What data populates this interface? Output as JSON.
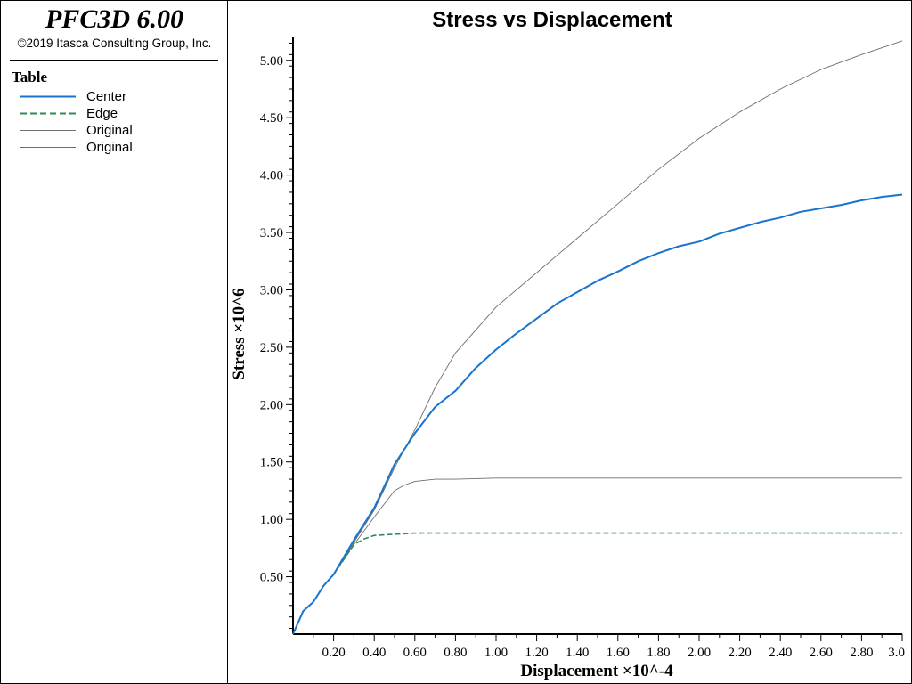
{
  "header": {
    "app_title": "PFC3D 6.00",
    "copyright": "©2019 Itasca Consulting Group, Inc."
  },
  "legend": {
    "title": "Table",
    "items": [
      {
        "label": "Center",
        "color": "#1874cd",
        "dash": "solid"
      },
      {
        "label": "Edge",
        "color": "#2e8b57",
        "dash": "dashed"
      },
      {
        "label": "Original",
        "color": "#6e6e6e",
        "dash": "solid"
      },
      {
        "label": "Original",
        "color": "#6e6e6e",
        "dash": "solid"
      }
    ]
  },
  "chart_data": {
    "type": "line",
    "title": "Stress vs Displacement",
    "xlabel": "Displacement ×10^-4",
    "ylabel": "Stress ×10^6",
    "xlim": [
      0,
      3.0
    ],
    "ylim": [
      0,
      5.2
    ],
    "x_ticks": [
      "0.20",
      "0.40",
      "0.60",
      "0.80",
      "1.00",
      "1.20",
      "1.40",
      "1.60",
      "1.80",
      "2.00",
      "2.20",
      "2.40",
      "2.60",
      "2.80",
      "3.0"
    ],
    "y_ticks": [
      "0.50",
      "1.00",
      "1.50",
      "2.00",
      "2.50",
      "3.00",
      "3.50",
      "4.00",
      "4.50",
      "5.00"
    ],
    "grid": false,
    "legend_position": "left-panel",
    "series": [
      {
        "name": "Center",
        "color": "#1874cd",
        "dash": "solid",
        "x": [
          0,
          0.05,
          0.1,
          0.15,
          0.2,
          0.3,
          0.4,
          0.5,
          0.6,
          0.7,
          0.8,
          0.9,
          1.0,
          1.1,
          1.2,
          1.3,
          1.4,
          1.5,
          1.6,
          1.7,
          1.8,
          1.9,
          2.0,
          2.1,
          2.2,
          2.3,
          2.4,
          2.5,
          2.6,
          2.7,
          2.8,
          2.9,
          3.0
        ],
        "y": [
          0,
          0.2,
          0.28,
          0.42,
          0.52,
          0.82,
          1.1,
          1.48,
          1.75,
          1.98,
          2.12,
          2.32,
          2.48,
          2.62,
          2.75,
          2.88,
          2.98,
          3.08,
          3.16,
          3.25,
          3.32,
          3.38,
          3.42,
          3.49,
          3.54,
          3.59,
          3.63,
          3.68,
          3.71,
          3.74,
          3.78,
          3.81,
          3.83
        ]
      },
      {
        "name": "Edge",
        "color": "#2e8b57",
        "dash": "dashed",
        "x": [
          0,
          0.05,
          0.1,
          0.15,
          0.2,
          0.3,
          0.35,
          0.4,
          0.5,
          0.6,
          0.8,
          1.0,
          1.5,
          2.0,
          2.5,
          3.0
        ],
        "y": [
          0,
          0.2,
          0.28,
          0.42,
          0.52,
          0.78,
          0.83,
          0.86,
          0.87,
          0.88,
          0.88,
          0.88,
          0.88,
          0.88,
          0.88,
          0.88
        ]
      },
      {
        "name": "Original",
        "color": "#6e6e6e",
        "dash": "solid",
        "x": [
          0,
          0.05,
          0.1,
          0.15,
          0.2,
          0.3,
          0.4,
          0.5,
          0.6,
          0.7,
          0.8,
          0.9,
          1.0,
          1.2,
          1.4,
          1.6,
          1.8,
          2.0,
          2.2,
          2.4,
          2.6,
          2.8,
          3.0
        ],
        "y": [
          0,
          0.2,
          0.28,
          0.42,
          0.52,
          0.8,
          1.08,
          1.45,
          1.78,
          2.15,
          2.45,
          2.65,
          2.85,
          3.15,
          3.45,
          3.75,
          4.05,
          4.32,
          4.55,
          4.75,
          4.92,
          5.05,
          5.17
        ]
      },
      {
        "name": "Original",
        "color": "#6e6e6e",
        "dash": "solid",
        "x": [
          0,
          0.05,
          0.1,
          0.15,
          0.2,
          0.3,
          0.4,
          0.5,
          0.55,
          0.6,
          0.7,
          0.8,
          1.0,
          1.5,
          2.0,
          2.5,
          3.0
        ],
        "y": [
          0,
          0.2,
          0.28,
          0.42,
          0.52,
          0.78,
          1.02,
          1.25,
          1.3,
          1.33,
          1.35,
          1.35,
          1.36,
          1.36,
          1.36,
          1.36,
          1.36
        ]
      }
    ]
  }
}
